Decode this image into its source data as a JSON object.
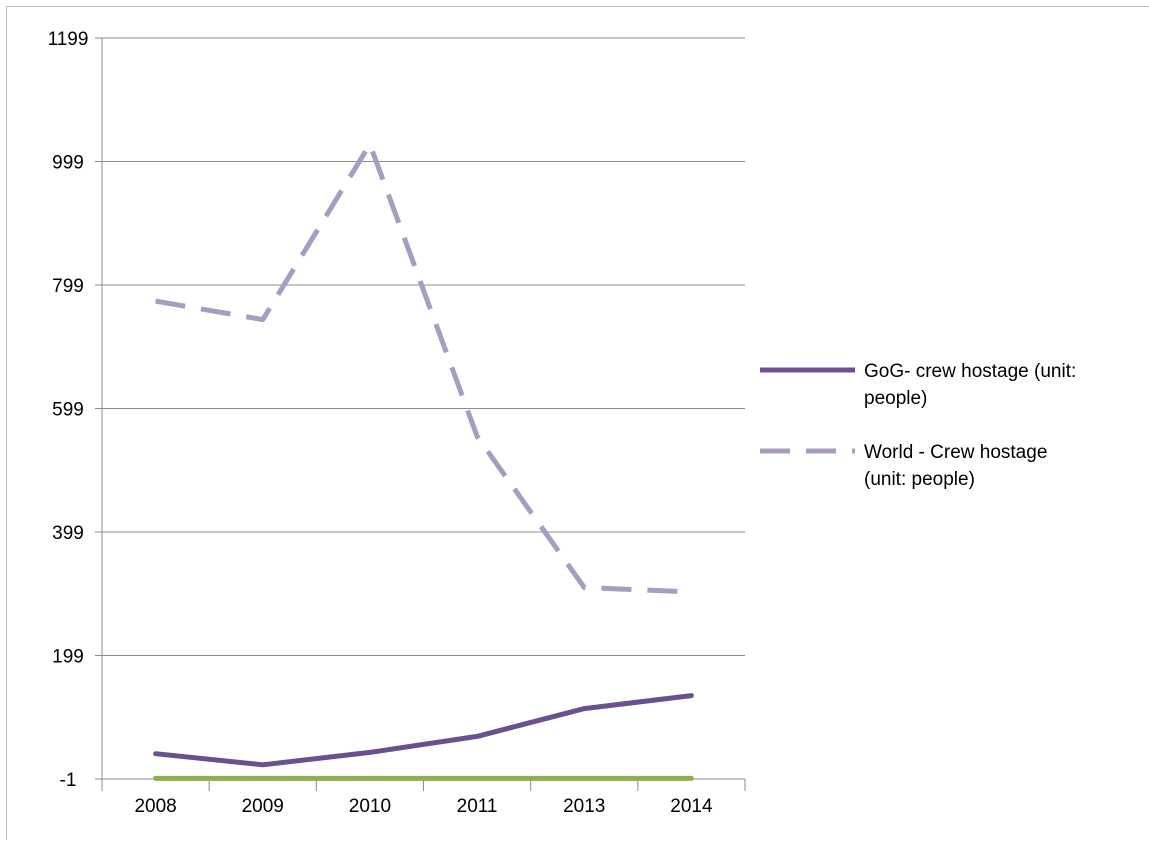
{
  "chart_data": {
    "type": "line",
    "title": "",
    "xlabel": "",
    "ylabel": "",
    "categories": [
      "2008",
      "2009",
      "2010",
      "2011",
      "2013",
      "2014"
    ],
    "ylim": [
      -1,
      1199
    ],
    "yticks": [
      -1,
      199,
      399,
      599,
      799,
      999,
      1199
    ],
    "grid": true,
    "legend_position": "right",
    "series": [
      {
        "name": "GoG- crew hostage (unit: people)",
        "legend_lines": [
          "GoG- crew hostage (unit:",
          "people)"
        ],
        "values": [
          40,
          22,
          42,
          68,
          113,
          134
        ],
        "color": "#6b4f8f",
        "style": "solid"
      },
      {
        "name": "World - Crew hostage (unit: people)",
        "legend_lines": [
          "World - Crew hostage",
          "(unit: people)"
        ],
        "values": [
          773,
          743,
          1027,
          554,
          309,
          302
        ],
        "color": "#a89cc0",
        "style": "dashed"
      },
      {
        "values": [
          0,
          0,
          0,
          0,
          0,
          0
        ],
        "color": "#8fb04e",
        "style": "solid"
      }
    ]
  }
}
